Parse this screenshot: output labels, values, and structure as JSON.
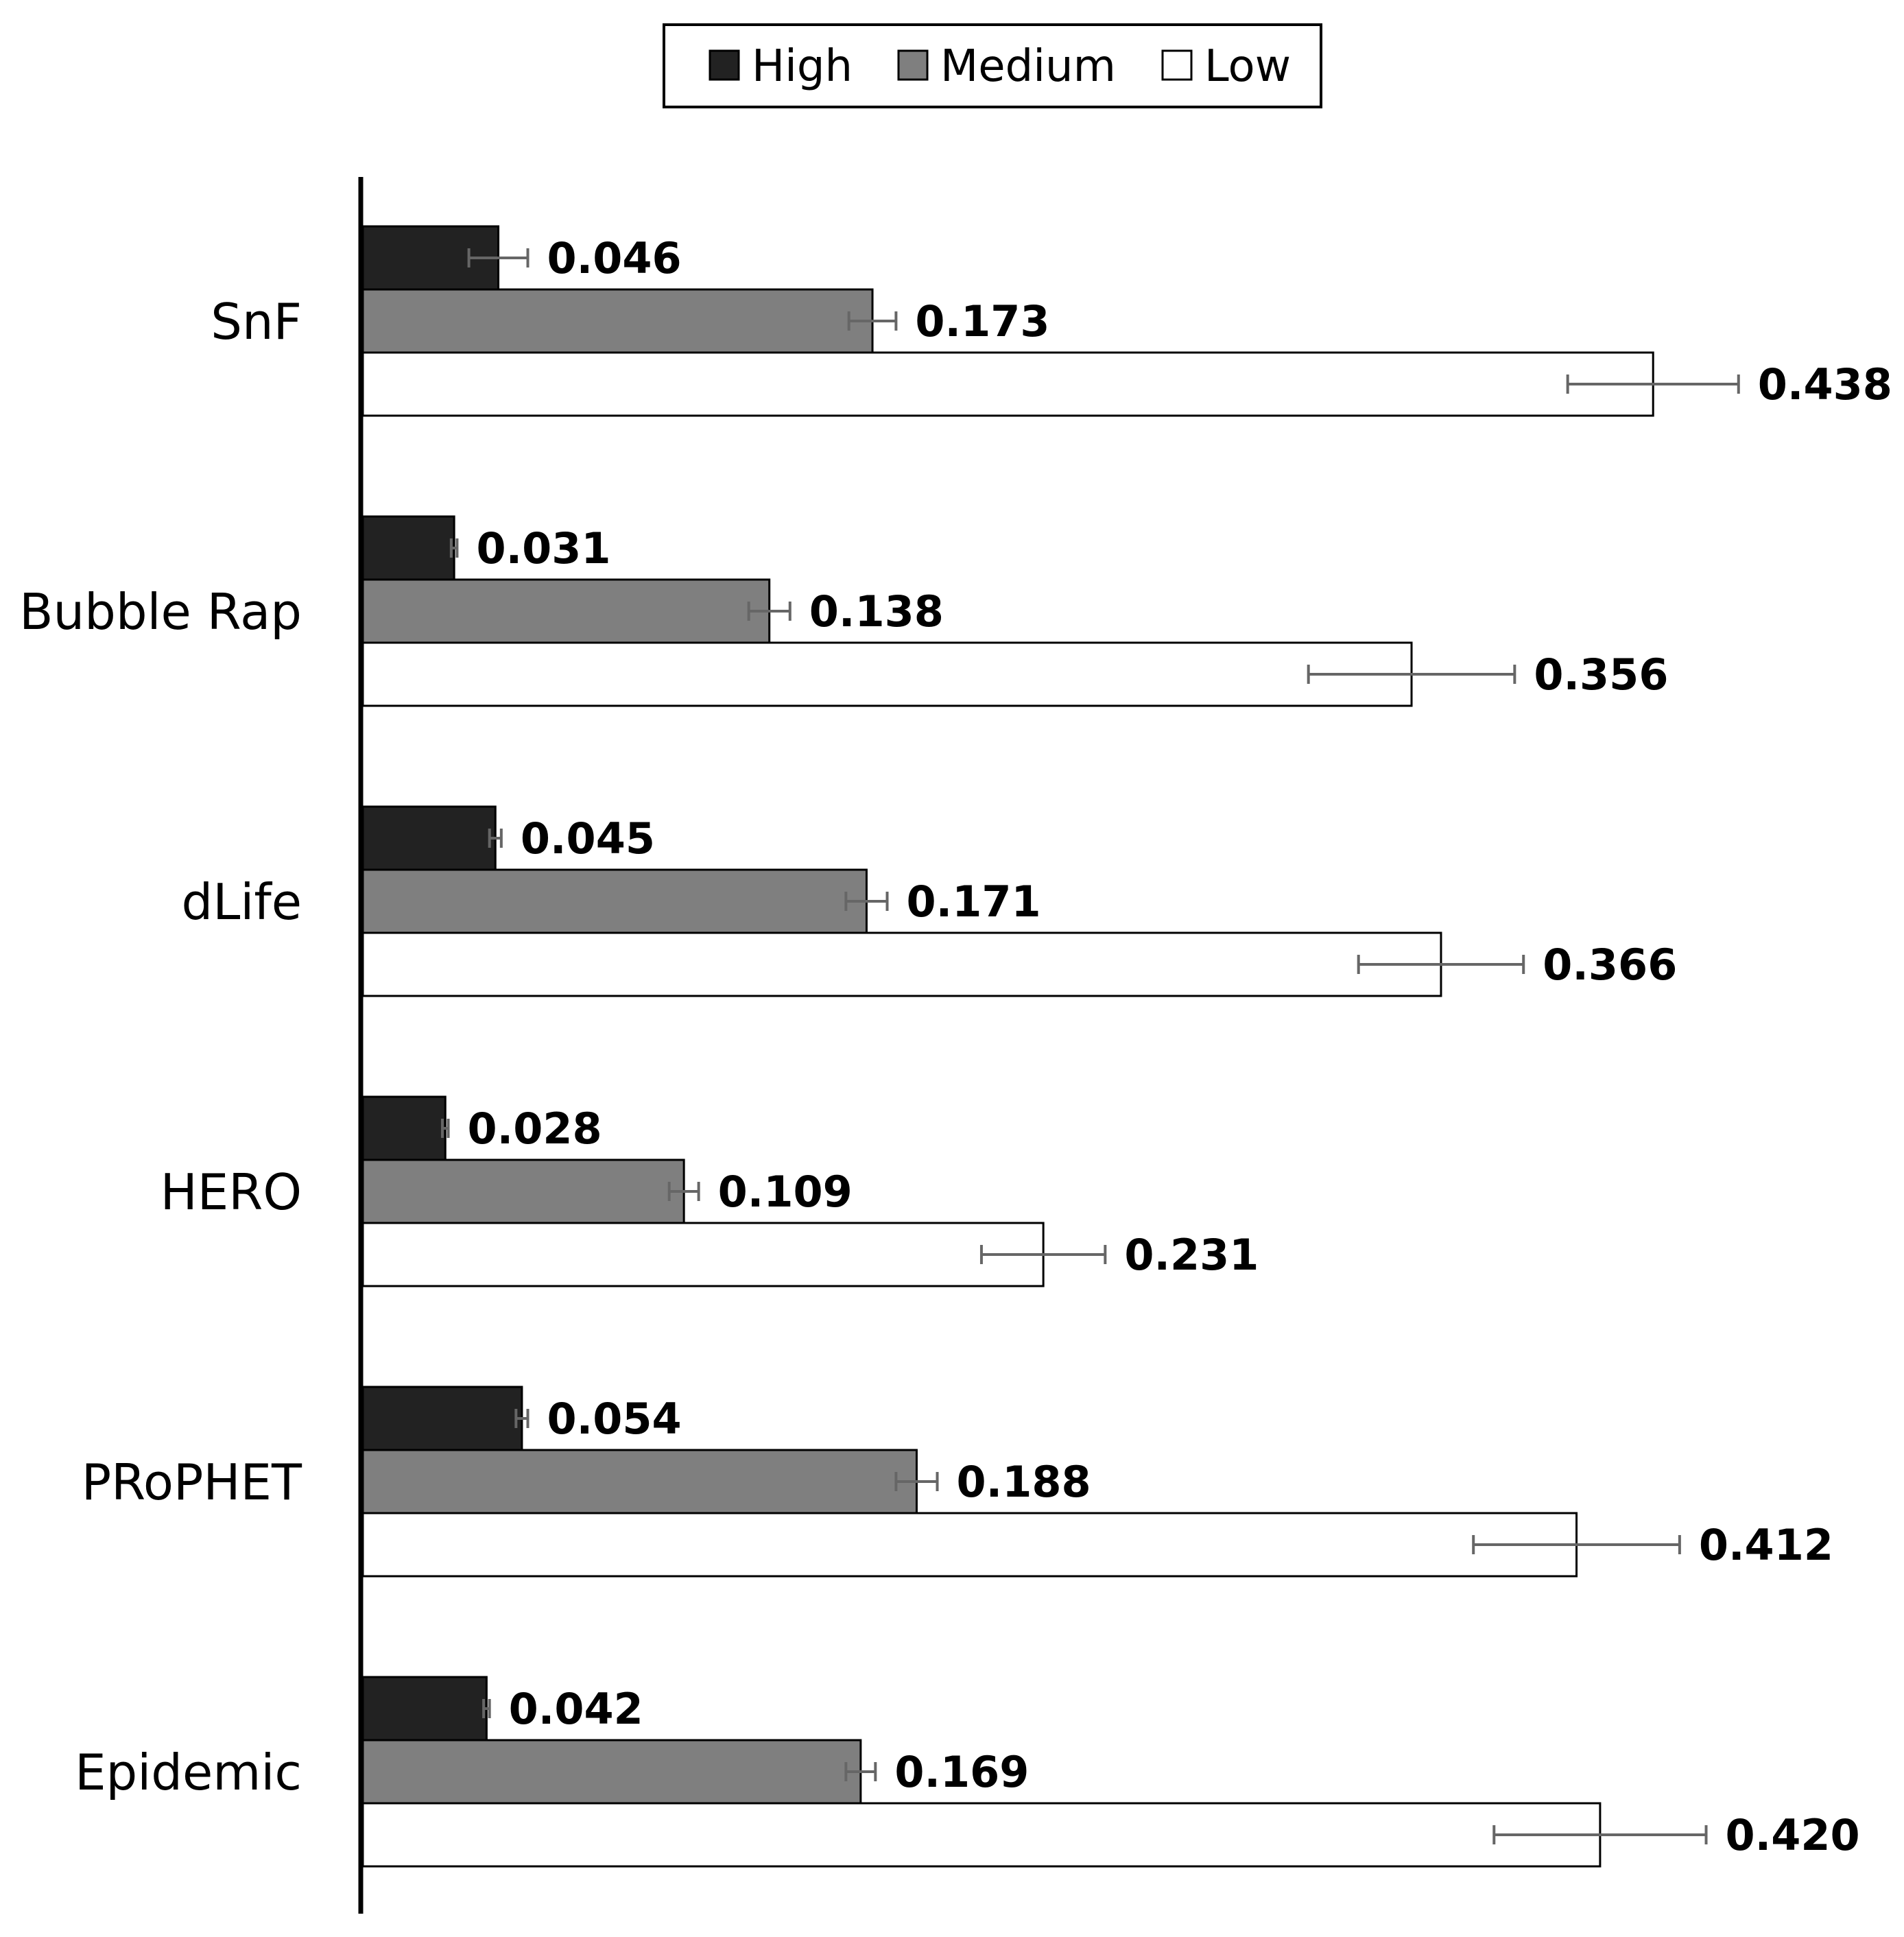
{
  "chart_data": {
    "type": "bar",
    "orientation": "horizontal",
    "categories": [
      "SnF",
      "Bubble Rap",
      "dLife",
      "HERO",
      "PRoPHET",
      "Epidemic"
    ],
    "series": [
      {
        "name": "High",
        "color": "#222222",
        "values": [
          0.046,
          0.031,
          0.045,
          0.028,
          0.054,
          0.042
        ],
        "labels": [
          "0.046",
          "0.031",
          "0.045",
          "0.028",
          "0.054",
          "0.042"
        ],
        "errors": [
          0.01,
          0.001,
          0.002,
          0.001,
          0.002,
          0.001
        ]
      },
      {
        "name": "Medium",
        "color": "#7f7f7f",
        "values": [
          0.173,
          0.138,
          0.171,
          0.109,
          0.188,
          0.169
        ],
        "labels": [
          "0.173",
          "0.138",
          "0.171",
          "0.109",
          "0.188",
          "0.169"
        ],
        "errors": [
          0.008,
          0.007,
          0.007,
          0.005,
          0.007,
          0.005
        ]
      },
      {
        "name": "Low",
        "color": "#ffffff",
        "values": [
          0.438,
          0.356,
          0.366,
          0.231,
          0.412,
          0.42
        ],
        "labels": [
          "0.438",
          "0.356",
          "0.366",
          "0.231",
          "0.412",
          "0.420"
        ],
        "errors": [
          0.029,
          0.035,
          0.028,
          0.021,
          0.035,
          0.036
        ]
      }
    ],
    "legend": {
      "position": "top-center"
    },
    "grid": false,
    "xlim": [
      0,
      0.5
    ]
  }
}
